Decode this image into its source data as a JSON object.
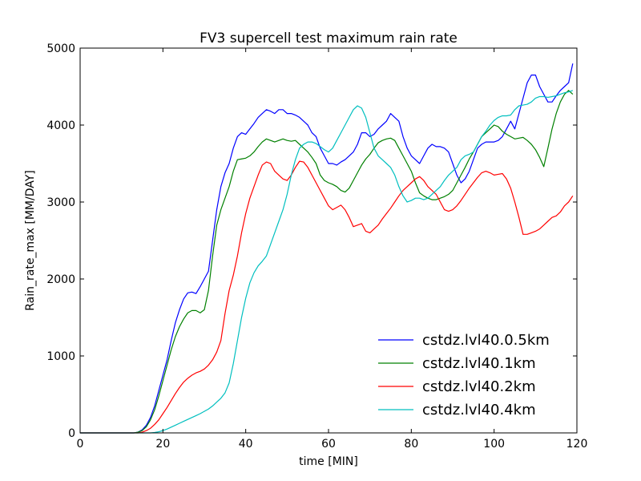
{
  "chart_data": {
    "type": "line",
    "title": "FV3 supercell test maximum rain rate",
    "xlabel": "time [MIN]",
    "ylabel": "Rain_rate_max [MM/DAY]",
    "xlim": [
      0,
      120
    ],
    "ylim": [
      0,
      5000
    ],
    "xticks": [
      0,
      20,
      40,
      60,
      80,
      100,
      120
    ],
    "yticks": [
      0,
      1000,
      2000,
      3000,
      4000,
      5000
    ],
    "grid": false,
    "legend_position": "lower-right",
    "x": [
      0,
      1,
      2,
      3,
      4,
      5,
      6,
      7,
      8,
      9,
      10,
      11,
      12,
      13,
      14,
      15,
      16,
      17,
      18,
      19,
      20,
      21,
      22,
      23,
      24,
      25,
      26,
      27,
      28,
      29,
      30,
      31,
      32,
      33,
      34,
      35,
      36,
      37,
      38,
      39,
      40,
      41,
      42,
      43,
      44,
      45,
      46,
      47,
      48,
      49,
      50,
      51,
      52,
      53,
      54,
      55,
      56,
      57,
      58,
      59,
      60,
      61,
      62,
      63,
      64,
      65,
      66,
      67,
      68,
      69,
      70,
      71,
      72,
      73,
      74,
      75,
      76,
      77,
      78,
      79,
      80,
      81,
      82,
      83,
      84,
      85,
      86,
      87,
      88,
      89,
      90,
      91,
      92,
      93,
      94,
      95,
      96,
      97,
      98,
      99,
      100,
      101,
      102,
      103,
      104,
      105,
      106,
      107,
      108,
      109,
      110,
      111,
      112,
      113,
      114,
      115,
      116,
      117,
      118,
      119
    ],
    "series": [
      {
        "name": "cstdz.lvl40.0.5km",
        "color": "#0000ff",
        "values": [
          0,
          0,
          0,
          0,
          0,
          0,
          0,
          0,
          0,
          0,
          0,
          0,
          0,
          0,
          10,
          40,
          100,
          200,
          350,
          550,
          750,
          950,
          1200,
          1430,
          1600,
          1740,
          1820,
          1830,
          1810,
          1900,
          2000,
          2100,
          2500,
          2900,
          3200,
          3380,
          3500,
          3700,
          3850,
          3900,
          3880,
          3950,
          4020,
          4100,
          4150,
          4200,
          4180,
          4150,
          4200,
          4200,
          4150,
          4150,
          4130,
          4100,
          4050,
          4000,
          3900,
          3850,
          3700,
          3600,
          3500,
          3500,
          3480,
          3520,
          3550,
          3600,
          3650,
          3750,
          3900,
          3900,
          3850,
          3880,
          3950,
          4000,
          4050,
          4150,
          4100,
          4050,
          3850,
          3700,
          3600,
          3550,
          3500,
          3600,
          3700,
          3750,
          3720,
          3720,
          3700,
          3650,
          3500,
          3350,
          3250,
          3300,
          3400,
          3550,
          3700,
          3750,
          3780,
          3780,
          3780,
          3800,
          3850,
          3950,
          4050,
          3950,
          4150,
          4350,
          4550,
          4650,
          4650,
          4500,
          4400,
          4300,
          4300,
          4380,
          4450,
          4500,
          4550,
          4800
        ]
      },
      {
        "name": "cstdz.lvl40.1km",
        "color": "#008000",
        "values": [
          0,
          0,
          0,
          0,
          0,
          0,
          0,
          0,
          0,
          0,
          0,
          0,
          0,
          0,
          10,
          30,
          80,
          170,
          300,
          480,
          680,
          880,
          1080,
          1250,
          1380,
          1480,
          1560,
          1590,
          1590,
          1560,
          1600,
          1850,
          2300,
          2700,
          2900,
          3050,
          3200,
          3400,
          3550,
          3560,
          3570,
          3600,
          3650,
          3720,
          3780,
          3820,
          3800,
          3780,
          3800,
          3820,
          3800,
          3790,
          3800,
          3750,
          3700,
          3650,
          3580,
          3500,
          3350,
          3280,
          3250,
          3230,
          3200,
          3150,
          3130,
          3180,
          3280,
          3380,
          3480,
          3560,
          3620,
          3700,
          3770,
          3800,
          3820,
          3830,
          3800,
          3700,
          3600,
          3500,
          3400,
          3250,
          3120,
          3080,
          3050,
          3030,
          3030,
          3050,
          3070,
          3100,
          3150,
          3250,
          3350,
          3450,
          3560,
          3650,
          3750,
          3850,
          3900,
          3950,
          4000,
          3980,
          3920,
          3880,
          3850,
          3820,
          3830,
          3840,
          3800,
          3750,
          3680,
          3580,
          3460,
          3700,
          3950,
          4150,
          4300,
          4400,
          4450,
          4400
        ]
      },
      {
        "name": "cstdz.lvl40.2km",
        "color": "#ff0000",
        "values": [
          0,
          0,
          0,
          0,
          0,
          0,
          0,
          0,
          0,
          0,
          0,
          0,
          0,
          0,
          0,
          10,
          30,
          60,
          110,
          170,
          250,
          330,
          420,
          510,
          590,
          660,
          710,
          750,
          780,
          800,
          830,
          880,
          950,
          1050,
          1200,
          1550,
          1850,
          2050,
          2300,
          2600,
          2850,
          3050,
          3200,
          3350,
          3480,
          3520,
          3500,
          3400,
          3350,
          3300,
          3280,
          3350,
          3450,
          3530,
          3520,
          3450,
          3350,
          3250,
          3150,
          3050,
          2950,
          2900,
          2930,
          2960,
          2900,
          2800,
          2680,
          2700,
          2720,
          2620,
          2600,
          2650,
          2700,
          2780,
          2850,
          2920,
          3000,
          3080,
          3150,
          3200,
          3250,
          3300,
          3330,
          3280,
          3200,
          3150,
          3100,
          3000,
          2900,
          2880,
          2900,
          2950,
          3020,
          3100,
          3180,
          3250,
          3320,
          3380,
          3400,
          3380,
          3350,
          3360,
          3370,
          3300,
          3180,
          3000,
          2800,
          2580,
          2580,
          2600,
          2620,
          2650,
          2700,
          2750,
          2800,
          2820,
          2870,
          2950,
          3000,
          3080
        ]
      },
      {
        "name": "cstdz.lvl40.4km",
        "color": "#00bfbf",
        "values": [
          0,
          0,
          0,
          0,
          0,
          0,
          0,
          0,
          0,
          0,
          0,
          0,
          0,
          0,
          0,
          0,
          0,
          0,
          5,
          15,
          30,
          50,
          75,
          100,
          125,
          150,
          175,
          200,
          225,
          250,
          280,
          310,
          350,
          400,
          450,
          520,
          650,
          900,
          1200,
          1500,
          1750,
          1950,
          2080,
          2170,
          2230,
          2300,
          2450,
          2600,
          2750,
          2900,
          3100,
          3350,
          3550,
          3700,
          3750,
          3780,
          3780,
          3760,
          3720,
          3680,
          3650,
          3700,
          3800,
          3900,
          4000,
          4100,
          4200,
          4250,
          4220,
          4100,
          3900,
          3700,
          3600,
          3550,
          3500,
          3450,
          3350,
          3200,
          3080,
          3000,
          3020,
          3050,
          3050,
          3030,
          3050,
          3100,
          3150,
          3200,
          3280,
          3350,
          3400,
          3450,
          3550,
          3600,
          3620,
          3650,
          3750,
          3850,
          3920,
          4000,
          4060,
          4100,
          4120,
          4120,
          4130,
          4200,
          4250,
          4260,
          4270,
          4300,
          4350,
          4370,
          4370,
          4360,
          4370,
          4380,
          4400,
          4420,
          4430,
          4450
        ]
      }
    ]
  }
}
